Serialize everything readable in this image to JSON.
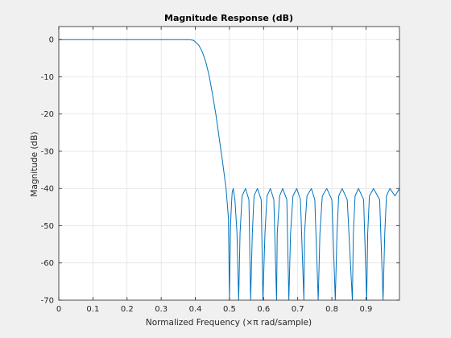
{
  "chart_data": {
    "type": "line",
    "title": "Magnitude Response (dB)",
    "xlabel": "Normalized Frequency (×π rad/sample)",
    "ylabel": "Magnitude (dB)",
    "xlim": [
      0,
      0.998
    ],
    "ylim": [
      -70,
      3.5
    ],
    "xticks": [
      0,
      0.1,
      0.2,
      0.3,
      0.4,
      0.5,
      0.6,
      0.7,
      0.8,
      0.9
    ],
    "xtick_labels": [
      "0",
      "0.1",
      "0.2",
      "0.3",
      "0.4",
      "0.5",
      "0.6",
      "0.7",
      "0.8",
      "0.9"
    ],
    "yticks": [
      0,
      -10,
      -20,
      -30,
      -40,
      -50,
      -60,
      -70
    ],
    "ytick_labels": [
      "0",
      "-10",
      "-20",
      "-30",
      "-40",
      "-50",
      "-60",
      "-70"
    ],
    "grid": true,
    "series": [
      {
        "color": "#0072bd",
        "x": [
          0,
          0.1,
          0.2,
          0.3,
          0.38,
          0.395,
          0.41,
          0.42,
          0.43,
          0.44,
          0.45,
          0.46,
          0.47,
          0.48,
          0.49,
          0.497,
          0.5,
          0.503,
          0.506,
          0.508,
          0.511,
          0.516,
          0.522,
          0.527,
          0.531,
          0.537,
          0.547,
          0.557,
          0.562,
          0.567,
          0.572,
          0.582,
          0.593,
          0.598,
          0.604,
          0.61,
          0.62,
          0.63,
          0.638,
          0.64,
          0.647,
          0.656,
          0.668,
          0.674,
          0.679,
          0.686,
          0.697,
          0.708,
          0.718,
          0.72,
          0.727,
          0.74,
          0.75,
          0.76,
          0.765,
          0.772,
          0.785,
          0.8,
          0.81,
          0.815,
          0.82,
          0.83,
          0.845,
          0.86,
          0.863,
          0.868,
          0.878,
          0.893,
          0.902,
          0.905,
          0.91,
          0.922,
          0.94,
          0.95,
          0.955,
          0.96,
          0.97,
          0.985,
          0.998
        ],
        "y": [
          0,
          0,
          0,
          0,
          0,
          -0.2,
          -1.5,
          -3.2,
          -5.8,
          -9.5,
          -14.5,
          -20,
          -26.5,
          -33,
          -40,
          -48,
          -70,
          -50,
          -44,
          -41,
          -40,
          -43,
          -52,
          -70,
          -52,
          -42,
          -40,
          -43,
          -70,
          -52,
          -42,
          -40,
          -43,
          -70,
          -52,
          -42,
          -40,
          -43,
          -70,
          -52,
          -42,
          -40,
          -43,
          -70,
          -52,
          -42,
          -40,
          -43,
          -70,
          -52,
          -42,
          -40,
          -43,
          -70,
          -52,
          -42,
          -40,
          -43,
          -70,
          -52,
          -42,
          -40,
          -43,
          -70,
          -52,
          -42,
          -40,
          -43,
          -70,
          -52,
          -42,
          -40,
          -43,
          -70,
          -52,
          -42,
          -40,
          -42,
          -40
        ]
      }
    ]
  }
}
